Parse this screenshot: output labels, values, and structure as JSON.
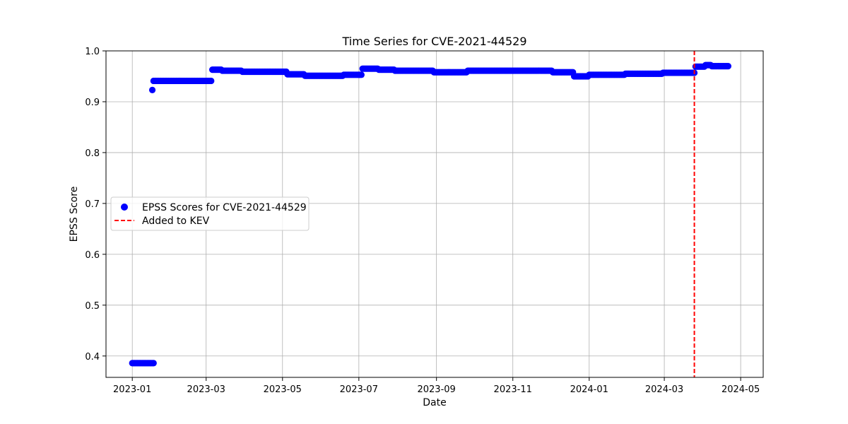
{
  "chart_data": {
    "type": "scatter",
    "title": "Time Series for CVE-2021-44529",
    "xlabel": "Date",
    "ylabel": "EPSS Score",
    "x_axis_type": "date",
    "xlim": [
      "2022-12-11",
      "2024-05-19"
    ],
    "ylim": [
      0.358,
      1.0
    ],
    "grid": true,
    "legend_position": "center-left",
    "x_ticks": [
      {
        "date": "2023-01-01",
        "label": "2023-01"
      },
      {
        "date": "2023-03-01",
        "label": "2023-03"
      },
      {
        "date": "2023-05-01",
        "label": "2023-05"
      },
      {
        "date": "2023-07-01",
        "label": "2023-07"
      },
      {
        "date": "2023-09-01",
        "label": "2023-09"
      },
      {
        "date": "2023-11-01",
        "label": "2023-11"
      },
      {
        "date": "2024-01-01",
        "label": "2024-01"
      },
      {
        "date": "2024-03-01",
        "label": "2024-03"
      },
      {
        "date": "2024-05-01",
        "label": "2024-05"
      }
    ],
    "y_ticks": [
      {
        "value": 0.4,
        "label": "0.4"
      },
      {
        "value": 0.5,
        "label": "0.5"
      },
      {
        "value": 0.6,
        "label": "0.6"
      },
      {
        "value": 0.7,
        "label": "0.7"
      },
      {
        "value": 0.8,
        "label": "0.8"
      },
      {
        "value": 0.9,
        "label": "0.9"
      },
      {
        "value": 1.0,
        "label": "1.0"
      }
    ],
    "series": [
      {
        "name": "EPSS Scores for CVE-2021-44529",
        "kind": "scatter",
        "color": "#0000ff",
        "segments": [
          {
            "start": "2023-01-01",
            "end": "2023-01-18",
            "value": 0.386
          },
          {
            "start": "2023-01-17",
            "end": "2023-01-17",
            "value": 0.923
          },
          {
            "start": "2023-01-18",
            "end": "2023-03-05",
            "value": 0.941
          },
          {
            "start": "2023-03-06",
            "end": "2023-03-13",
            "value": 0.963
          },
          {
            "start": "2023-03-14",
            "end": "2023-03-29",
            "value": 0.961
          },
          {
            "start": "2023-03-30",
            "end": "2023-05-04",
            "value": 0.959
          },
          {
            "start": "2023-05-05",
            "end": "2023-05-18",
            "value": 0.954
          },
          {
            "start": "2023-05-19",
            "end": "2023-06-18",
            "value": 0.951
          },
          {
            "start": "2023-06-19",
            "end": "2023-07-03",
            "value": 0.953
          },
          {
            "start": "2023-07-04",
            "end": "2023-07-16",
            "value": 0.965
          },
          {
            "start": "2023-07-17",
            "end": "2023-07-29",
            "value": 0.963
          },
          {
            "start": "2023-07-30",
            "end": "2023-08-29",
            "value": 0.961
          },
          {
            "start": "2023-08-30",
            "end": "2023-09-25",
            "value": 0.958
          },
          {
            "start": "2023-09-26",
            "end": "2023-12-02",
            "value": 0.961
          },
          {
            "start": "2023-12-03",
            "end": "2023-12-19",
            "value": 0.958
          },
          {
            "start": "2023-12-20",
            "end": "2023-12-31",
            "value": 0.95
          },
          {
            "start": "2024-01-01",
            "end": "2024-01-29",
            "value": 0.953
          },
          {
            "start": "2024-01-30",
            "end": "2024-02-28",
            "value": 0.955
          },
          {
            "start": "2024-02-29",
            "end": "2024-03-25",
            "value": 0.957
          },
          {
            "start": "2024-03-26",
            "end": "2024-04-02",
            "value": 0.969
          },
          {
            "start": "2024-04-03",
            "end": "2024-04-07",
            "value": 0.972
          },
          {
            "start": "2024-04-08",
            "end": "2024-04-21",
            "value": 0.97
          }
        ]
      },
      {
        "name": "Added to KEV",
        "kind": "vline",
        "color": "#ff0000",
        "linestyle": "dashed",
        "x": "2024-03-25"
      }
    ]
  }
}
